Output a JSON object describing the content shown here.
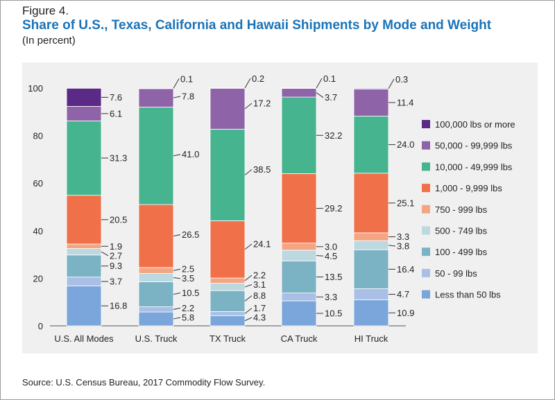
{
  "figure_label": "Figure 4.",
  "title": "Share of U.S., Texas, California and Hawaii Shipments by Mode and Weight",
  "subtitle": "(In percent)",
  "source": "Source: U.S. Census Bureau, 2017 Commodity Flow Survey.",
  "chart_data": {
    "type": "bar",
    "stacked": true,
    "title": "Share of U.S., Texas, California and Hawaii Shipments by Mode and Weight",
    "subtitle": "(In percent)",
    "ylim": [
      0,
      100
    ],
    "yticks": [
      0,
      20,
      40,
      60,
      80,
      100
    ],
    "grid": false,
    "legend_position": "right",
    "categories": [
      "U.S. All Modes",
      "U.S. Truck",
      "TX Truck",
      "CA Truck",
      "HI Truck"
    ],
    "series": [
      {
        "name": "Less than 50 lbs",
        "color": "#7ba6db",
        "values": [
          16.8,
          5.8,
          4.3,
          10.5,
          10.9
        ]
      },
      {
        "name": "50 - 99 lbs",
        "color": "#a9bfe6",
        "values": [
          3.7,
          2.2,
          1.7,
          3.3,
          4.7
        ]
      },
      {
        "name": "100 - 499 lbs",
        "color": "#7bb3c5",
        "values": [
          9.3,
          10.5,
          8.8,
          13.5,
          16.4
        ]
      },
      {
        "name": "500 - 749 lbs",
        "color": "#bcd8e0",
        "values": [
          2.7,
          3.5,
          3.1,
          4.5,
          3.8
        ]
      },
      {
        "name": "750 - 999 lbs",
        "color": "#f5a582",
        "values": [
          1.9,
          2.5,
          2.2,
          3.0,
          3.3
        ]
      },
      {
        "name": "1,000 - 9,999 lbs",
        "color": "#f0704a",
        "values": [
          20.5,
          26.5,
          24.1,
          29.2,
          25.1
        ]
      },
      {
        "name": "10,000 - 49,999 lbs",
        "color": "#46b48e",
        "values": [
          31.3,
          41.0,
          38.5,
          32.2,
          24.0
        ]
      },
      {
        "name": "50,000 - 99,999 lbs",
        "color": "#8f63a8",
        "values": [
          6.1,
          7.8,
          17.2,
          3.7,
          11.4
        ]
      },
      {
        "name": "100,000 lbs or more",
        "color": "#5a2a86",
        "values": [
          7.6,
          0.1,
          0.2,
          0.1,
          0.3
        ]
      }
    ],
    "data_labels": [
      [
        "16.8",
        "3.7",
        "9.3",
        "2.7",
        "1.9",
        "20.5",
        "31.3",
        "6.1",
        "7.6"
      ],
      [
        "5.8",
        "2.2",
        "10.5",
        "3.5",
        "2.5",
        "26.5",
        "41.0",
        "7.8",
        "0.1"
      ],
      [
        "4.3",
        "1.7",
        "8.8",
        "3.1",
        "2.2",
        "24.1",
        "38.5",
        "17.2",
        "0.2"
      ],
      [
        "10.5",
        "3.3",
        "13.5",
        "4.5",
        "3.0",
        "29.2",
        "32.2",
        "3.7",
        "0.1"
      ],
      [
        "10.9",
        "4.7",
        "16.4",
        "3.8",
        "3.3",
        "25.1",
        "24.0",
        "11.4",
        "0.3"
      ]
    ],
    "legend_order": [
      "100,000 lbs or more",
      "50,000 - 99,999 lbs",
      "10,000 - 49,999 lbs",
      "1,000 - 9,999 lbs",
      "750 - 999 lbs",
      "500 - 749 lbs",
      "100 - 499 lbs",
      "50 - 99 lbs",
      "Less than 50 lbs"
    ]
  }
}
